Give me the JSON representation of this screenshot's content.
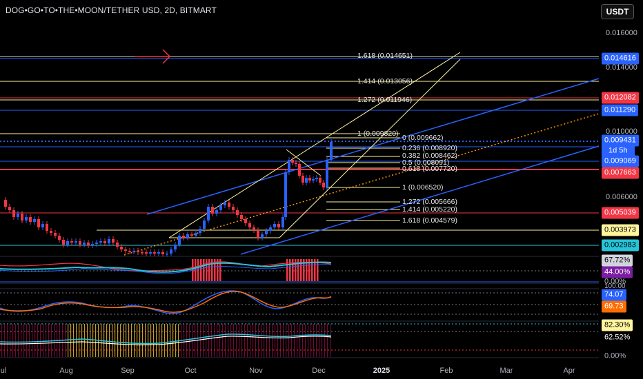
{
  "header": {
    "symbol_title": "DOG•GO•TO•THE•MOON/TETHER USD, 2D, BITMART",
    "currency_button": "USDT"
  },
  "price_axis": {
    "ticks": [
      "0.016000",
      "0.014000",
      "0.010000",
      "0.006000"
    ]
  },
  "price_badges": [
    {
      "id": "b1",
      "text": "0.014616",
      "bg": "#2962ff",
      "fg": "#ffffff"
    },
    {
      "id": "b2",
      "text": "0.012082",
      "bg": "#f23645",
      "fg": "#ffffff"
    },
    {
      "id": "b3",
      "text": "0.011290",
      "bg": "#2962ff",
      "fg": "#ffffff"
    },
    {
      "id": "b4",
      "text": "0.009431",
      "bg": "#2962ff",
      "fg": "#ffffff"
    },
    {
      "id": "b4a",
      "text": "1d 5h",
      "bg": "#2962ff",
      "fg": "#ffffff"
    },
    {
      "id": "b5",
      "text": "0.009069",
      "bg": "#2962ff",
      "fg": "#ffffff"
    },
    {
      "id": "b6",
      "text": "0.007663",
      "bg": "#f23645",
      "fg": "#ffffff"
    },
    {
      "id": "b7",
      "text": "0.005039",
      "bg": "#f23645",
      "fg": "#ffffff"
    },
    {
      "id": "b8",
      "text": "0.003973",
      "bg": "#fff59d",
      "fg": "#000000"
    },
    {
      "id": "b9",
      "text": "0.002983",
      "bg": "#26c6da",
      "fg": "#000000"
    }
  ],
  "indicator_badges": [
    {
      "id": "i1",
      "text": "67.72%",
      "bg": "#d1d4dc",
      "fg": "#000000"
    },
    {
      "id": "i2",
      "text": "44.00%",
      "bg": "#7b1fa2",
      "fg": "#ffffff"
    },
    {
      "id": "i3",
      "text": "0.00%",
      "bg": "none",
      "fg": "#b2b5be"
    },
    {
      "id": "i3b",
      "text": "100.00",
      "bg": "none",
      "fg": "#b2b5be"
    },
    {
      "id": "i4",
      "text": "74.07",
      "bg": "#2962ff",
      "fg": "#ffffff"
    },
    {
      "id": "i5",
      "text": "69.73",
      "bg": "#ff6d00",
      "fg": "#ffffff"
    },
    {
      "id": "i6",
      "text": "82.30%",
      "bg": "#fff59d",
      "fg": "#000000"
    },
    {
      "id": "i7",
      "text": "62.52%",
      "bg": "none",
      "fg": "#ffffff"
    },
    {
      "id": "i8",
      "text": "0.00%",
      "bg": "none",
      "fg": "#b2b5be"
    }
  ],
  "fib_left": [
    "1.618 (0.014651)",
    "1.414 (0.013056)",
    "1.272 (0.011946)",
    "1 (0.009820)"
  ],
  "fib_right": [
    "0 (0.009662)",
    "0.236 (0.008920)",
    "0.382 (0.008462)",
    "0.5 (0.008091)",
    "0.618 (0.007720)",
    "1 (0.006520)",
    "1.272 (0.005666)",
    "1.414 (0.005220)",
    "1.618 (0.004579)"
  ],
  "time_axis": [
    "ul",
    "Aug",
    "Sep",
    "Oct",
    "Nov",
    "Dec",
    "2025",
    "Feb",
    "Mar",
    "Apr"
  ],
  "colors": {
    "background": "#000000",
    "up": "#2962ff",
    "down": "#f23645",
    "fib": "#fff59d",
    "channel": "#2962ff"
  }
}
